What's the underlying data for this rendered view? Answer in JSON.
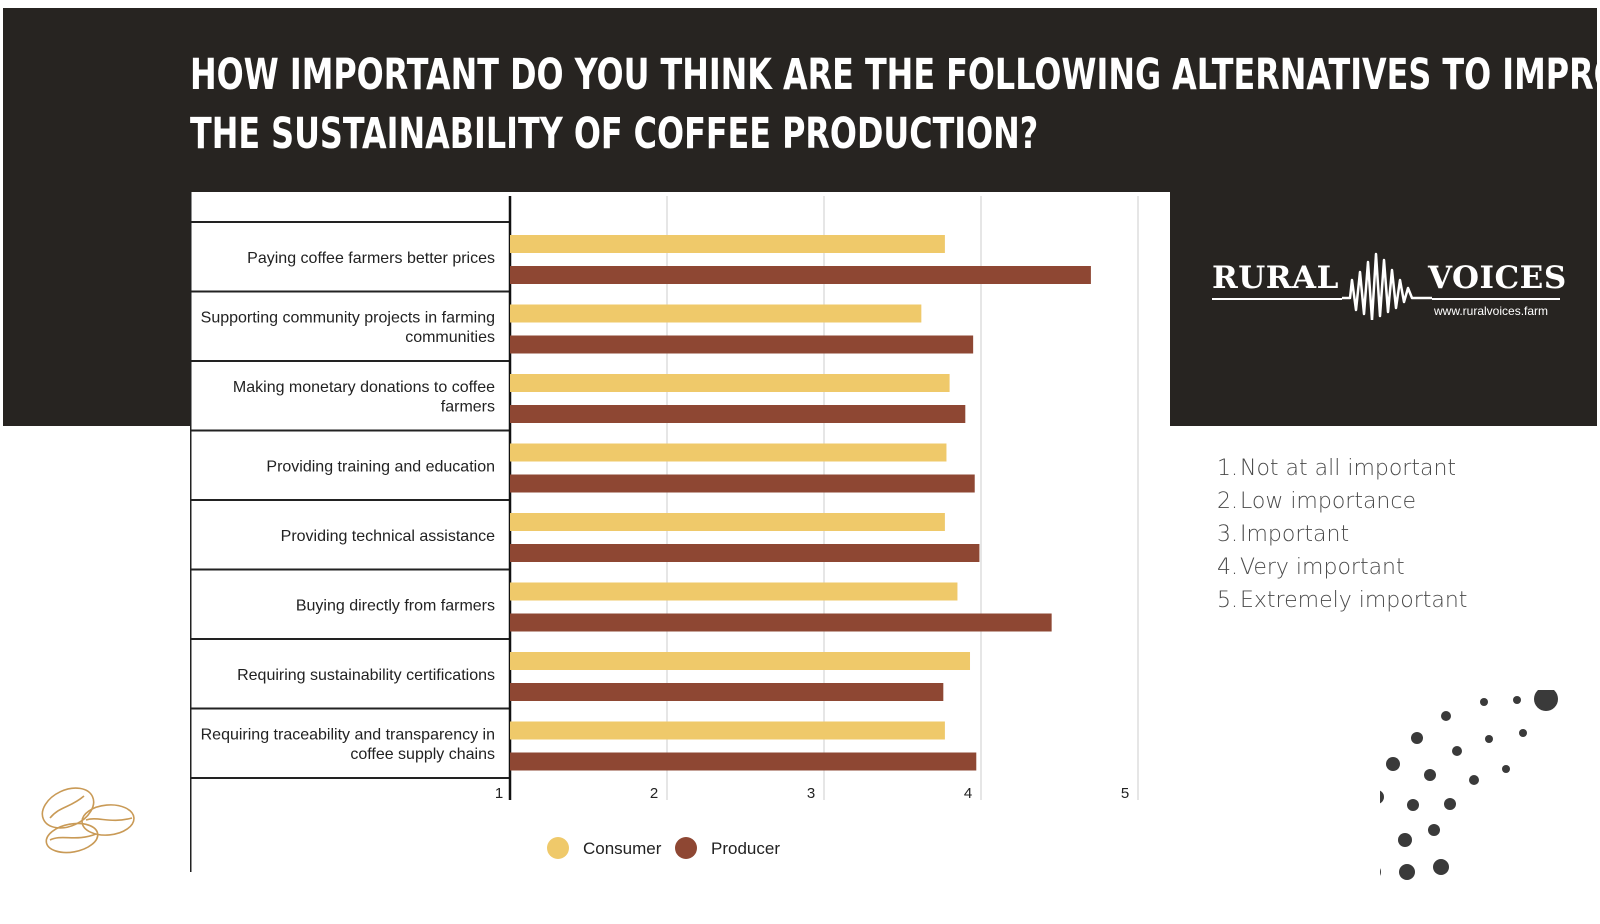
{
  "title": {
    "line1": "HOW IMPORTANT DO YOU THINK ARE THE FOLLOWING ALTERNATIVES TO IMPROVE",
    "line2": "THE SUSTAINABILITY OF COFFEE PRODUCTION?"
  },
  "logo": {
    "left_word": "RURAL",
    "right_word": "VOICES",
    "url": "www.ruralvoices.farm"
  },
  "scale": [
    {
      "num": "1.",
      "text": "Not at all important"
    },
    {
      "num": "2.",
      "text": "Low importance"
    },
    {
      "num": "3.",
      "text": "Important"
    },
    {
      "num": "4.",
      "text": "Very important"
    },
    {
      "num": "5.",
      "text": "Extremely important"
    }
  ],
  "colors": {
    "consumer": "#EFC96A",
    "producer": "#8E4733",
    "background_dark": "#272421"
  },
  "chart_data": {
    "type": "bar",
    "orientation": "horizontal",
    "title": "",
    "xlabel": "",
    "ylabel": "",
    "xlim": [
      1,
      5
    ],
    "xticks": [
      "1",
      "2",
      "3",
      "4",
      "5"
    ],
    "grid": true,
    "legend": "bottom",
    "categories": [
      [
        "Paying coffee farmers better prices"
      ],
      [
        "Supporting community projects in farming",
        "communities"
      ],
      [
        "Making monetary donations to coffee",
        "farmers"
      ],
      [
        "Providing training and education"
      ],
      [
        "Providing technical assistance"
      ],
      [
        "Buying directly from farmers"
      ],
      [
        "Requiring sustainability certifications"
      ],
      [
        "Requiring traceability and transparency in",
        "coffee supply chains"
      ]
    ],
    "series": [
      {
        "name": "Consumer",
        "values": [
          3.77,
          3.62,
          3.8,
          3.78,
          3.77,
          3.85,
          3.93,
          3.77
        ]
      },
      {
        "name": "Producer",
        "values": [
          4.7,
          3.95,
          3.9,
          3.96,
          3.99,
          4.45,
          3.76,
          3.97
        ]
      }
    ]
  }
}
